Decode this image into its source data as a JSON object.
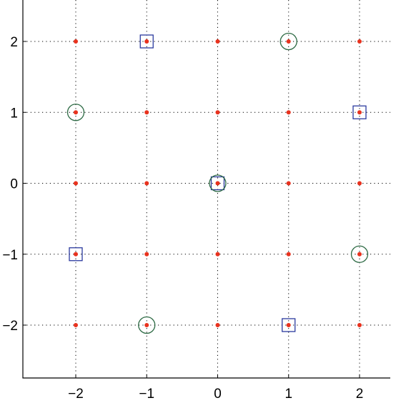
{
  "chart_data": {
    "type": "scatter",
    "title": "",
    "xlabel": "",
    "ylabel": "",
    "xlim": [
      -2.75,
      2.4
    ],
    "ylim": [
      -2.75,
      2.6
    ],
    "xticks": [
      -2,
      -1,
      0,
      1,
      2
    ],
    "yticks": [
      -2,
      -1,
      0,
      1,
      2
    ],
    "xtick_labels": [
      "−2",
      "−1",
      "0",
      "1",
      "2"
    ],
    "ytick_labels": [
      "−2",
      "−1",
      "0",
      "1",
      "2"
    ],
    "grid": true,
    "grid_style": "dotted",
    "series": [
      {
        "marker": "dot",
        "color": "#e8321e",
        "points": [
          [
            -2,
            2
          ],
          [
            -1,
            2
          ],
          [
            0,
            2
          ],
          [
            1,
            2
          ],
          [
            2,
            2
          ],
          [
            -2,
            1
          ],
          [
            -1,
            1
          ],
          [
            0,
            1
          ],
          [
            1,
            1
          ],
          [
            2,
            1
          ],
          [
            -2,
            0
          ],
          [
            -1,
            0
          ],
          [
            0,
            0
          ],
          [
            1,
            0
          ],
          [
            2,
            0
          ],
          [
            -2,
            -1
          ],
          [
            -1,
            -1
          ],
          [
            0,
            -1
          ],
          [
            1,
            -1
          ],
          [
            2,
            -1
          ],
          [
            -2,
            -2
          ],
          [
            -1,
            -2
          ],
          [
            0,
            -2
          ],
          [
            1,
            -2
          ],
          [
            2,
            -2
          ]
        ]
      },
      {
        "marker": "square",
        "color": "#2b3a9e",
        "points": [
          [
            -1,
            2
          ],
          [
            2,
            1
          ],
          [
            0,
            0
          ],
          [
            -2,
            -1
          ],
          [
            1,
            -2
          ]
        ]
      },
      {
        "marker": "circle",
        "color": "#2e6b45",
        "points": [
          [
            1,
            2
          ],
          [
            -2,
            1
          ],
          [
            0,
            0
          ],
          [
            2,
            -1
          ],
          [
            -1,
            -2
          ]
        ]
      }
    ]
  }
}
